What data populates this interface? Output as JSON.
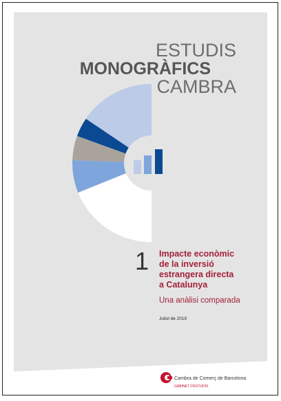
{
  "header": {
    "line1": "ESTUDIS",
    "line2": "MONOGRÀFICS",
    "line3": "CAMBRA"
  },
  "title": {
    "number": "1",
    "lines": [
      "Impacte econòmic",
      "de la inversió",
      "estrangera directa",
      "a Catalunya"
    ],
    "subtitle": "Una anàlisi comparada",
    "date": "Juliol de 2019"
  },
  "footer": {
    "organization": "Cambra de Comerç de Barcelona",
    "department": "GABINET D'ESTUDIS"
  }
}
